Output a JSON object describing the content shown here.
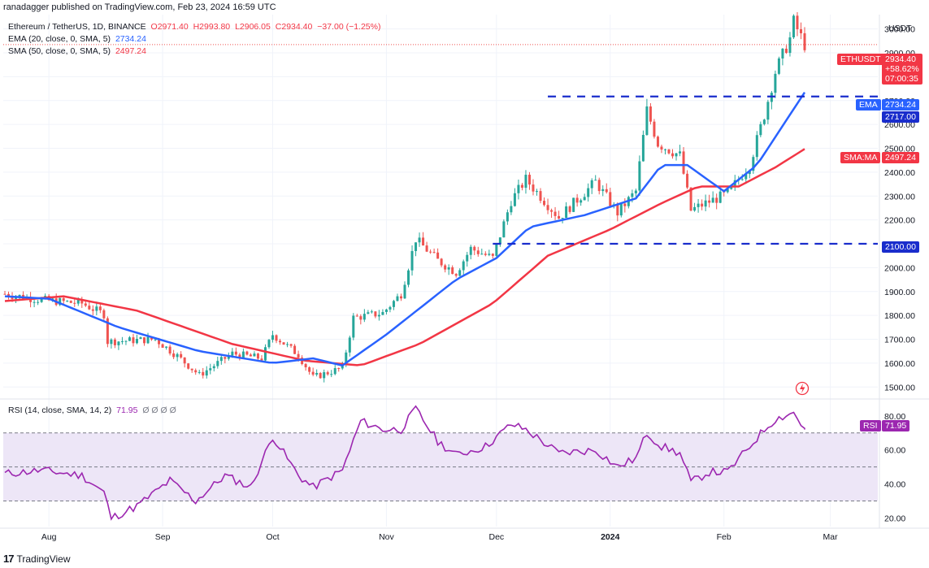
{
  "header": {
    "publish_line": "ranadagger published on TradingView.com, Feb 23, 2024 16:59 UTC",
    "symbol_line": "Ethereum / TetherUS, 1D, BINANCE",
    "ohlc": {
      "o": "O2971.40",
      "h": "H2993.80",
      "l": "L2906.05",
      "c": "C2934.40",
      "chg": "−37.00 (−1.25%)"
    },
    "ema_label": "EMA (20, close, 0, SMA, 5)",
    "ema_value": "2734.24",
    "sma_label": "SMA (50, close, 0, SMA, 5)",
    "sma_value": "2497.24",
    "rsi_label": "RSI (14, close, SMA, 14, 2)",
    "rsi_value": "71.95",
    "rsi_extra": "Ø Ø Ø Ø"
  },
  "footer": {
    "brand": "TradingView",
    "mark": "17"
  },
  "colors": {
    "up": "#26a69a",
    "down": "#ef5350",
    "ema": "#2962ff",
    "sma": "#f23645",
    "rsi": "#9c27b0",
    "level": "#1a2dcc",
    "rsi_fill": "#ede6f7",
    "grid": "#f0f3fa"
  },
  "chart_data": [
    {
      "type": "candlestick",
      "title": "Ethereum / TetherUS, 1D, BINANCE",
      "currency": "USDT",
      "x_ticks": [
        "Aug",
        "Sep",
        "Oct",
        "Nov",
        "Dec",
        "2024",
        "Feb",
        "Mar"
      ],
      "y_ticks": [
        1500,
        1600,
        1700,
        1800,
        1900,
        2000,
        2100,
        2200,
        2300,
        2400,
        2500,
        2600,
        2700,
        2800,
        2900,
        3000
      ],
      "ylim": [
        1460,
        3060
      ],
      "date_range": [
        "2023-07-20",
        "2024-02-23"
      ],
      "close_path": [
        [
          "2023-07-20",
          1890
        ],
        [
          "2023-07-30",
          1865
        ],
        [
          "2023-08-10",
          1850
        ],
        [
          "2023-08-16",
          1805
        ],
        [
          "2023-08-17",
          1690
        ],
        [
          "2023-08-30",
          1700
        ],
        [
          "2023-09-05",
          1630
        ],
        [
          "2023-09-11",
          1550
        ],
        [
          "2023-09-20",
          1640
        ],
        [
          "2023-09-28",
          1620
        ],
        [
          "2023-10-01",
          1720
        ],
        [
          "2023-10-08",
          1635
        ],
        [
          "2023-10-12",
          1540
        ],
        [
          "2023-10-20",
          1580
        ],
        [
          "2023-10-23",
          1790
        ],
        [
          "2023-10-31",
          1810
        ],
        [
          "2023-11-05",
          1890
        ],
        [
          "2023-11-09",
          2120
        ],
        [
          "2023-11-15",
          2030
        ],
        [
          "2023-11-20",
          1980
        ],
        [
          "2023-11-24",
          2080
        ],
        [
          "2023-11-30",
          2040
        ],
        [
          "2023-12-05",
          2280
        ],
        [
          "2023-12-09",
          2370
        ],
        [
          "2023-12-18",
          2210
        ],
        [
          "2023-12-28",
          2360
        ],
        [
          "2024-01-03",
          2230
        ],
        [
          "2024-01-08",
          2320
        ],
        [
          "2024-01-11",
          2660
        ],
        [
          "2024-01-14",
          2520
        ],
        [
          "2024-01-20",
          2470
        ],
        [
          "2024-01-23",
          2240
        ],
        [
          "2024-01-27",
          2270
        ],
        [
          "2024-02-02",
          2310
        ],
        [
          "2024-02-08",
          2430
        ],
        [
          "2024-02-12",
          2640
        ],
        [
          "2024-02-15",
          2820
        ],
        [
          "2024-02-19",
          2960
        ],
        [
          "2024-02-20",
          3030
        ],
        [
          "2024-02-23",
          2934.4
        ]
      ],
      "ema20_path": [
        [
          "2023-07-20",
          1880
        ],
        [
          "2023-08-01",
          1870
        ],
        [
          "2023-08-20",
          1750
        ],
        [
          "2023-09-11",
          1650
        ],
        [
          "2023-10-01",
          1600
        ],
        [
          "2023-10-12",
          1620
        ],
        [
          "2023-10-20",
          1590
        ],
        [
          "2023-11-01",
          1720
        ],
        [
          "2023-11-20",
          1950
        ],
        [
          "2023-12-01",
          2040
        ],
        [
          "2023-12-10",
          2170
        ],
        [
          "2023-12-25",
          2220
        ],
        [
          "2024-01-08",
          2290
        ],
        [
          "2024-01-15",
          2430
        ],
        [
          "2024-01-22",
          2430
        ],
        [
          "2024-02-01",
          2320
        ],
        [
          "2024-02-10",
          2430
        ],
        [
          "2024-02-23",
          2734.24
        ]
      ],
      "sma50_path": [
        [
          "2023-07-20",
          1860
        ],
        [
          "2023-08-05",
          1880
        ],
        [
          "2023-08-25",
          1820
        ],
        [
          "2023-09-20",
          1680
        ],
        [
          "2023-10-10",
          1610
        ],
        [
          "2023-10-25",
          1590
        ],
        [
          "2023-11-10",
          1680
        ],
        [
          "2023-11-30",
          1850
        ],
        [
          "2023-12-15",
          2050
        ],
        [
          "2024-01-01",
          2160
        ],
        [
          "2024-01-15",
          2270
        ],
        [
          "2024-01-25",
          2340
        ],
        [
          "2024-02-05",
          2340
        ],
        [
          "2024-02-15",
          2420
        ],
        [
          "2024-02-23",
          2497.24
        ]
      ],
      "horizontal_levels": [
        {
          "value": 2717.0,
          "label": "2717.00",
          "start": "2023-12-15"
        },
        {
          "value": 2100.0,
          "label": "2100.00",
          "start": "2023-11-30"
        }
      ],
      "price_tags": {
        "symbol": "ETHUSDT",
        "last": "2934.40",
        "change_pct": "+58.62%",
        "countdown": "07:00:35",
        "ema": "EMA",
        "ema_value": "2734.24",
        "sma": "SMA:MA",
        "sma_value": "2497.24",
        "level_high": "2717.00",
        "level_low": "2100.00"
      }
    },
    {
      "type": "line",
      "title": "RSI (14, close, SMA, 14, 2)",
      "y_ticks": [
        20.0,
        40.0,
        60.0,
        80.0
      ],
      "ylim": [
        15,
        88
      ],
      "band": [
        30,
        70
      ],
      "midline": 50,
      "last_value": "71.95",
      "series": [
        [
          "2023-07-20",
          46
        ],
        [
          "2023-07-30",
          48
        ],
        [
          "2023-08-10",
          45
        ],
        [
          "2023-08-16",
          35
        ],
        [
          "2023-08-18",
          20
        ],
        [
          "2023-08-25",
          27
        ],
        [
          "2023-09-03",
          42
        ],
        [
          "2023-09-10",
          30
        ],
        [
          "2023-09-18",
          45
        ],
        [
          "2023-09-25",
          38
        ],
        [
          "2023-10-01",
          68
        ],
        [
          "2023-10-08",
          45
        ],
        [
          "2023-10-12",
          38
        ],
        [
          "2023-10-20",
          48
        ],
        [
          "2023-10-25",
          77
        ],
        [
          "2023-10-31",
          72
        ],
        [
          "2023-11-05",
          72
        ],
        [
          "2023-11-09",
          84
        ],
        [
          "2023-11-15",
          65
        ],
        [
          "2023-11-20",
          57
        ],
        [
          "2023-11-28",
          62
        ],
        [
          "2023-12-05",
          75
        ],
        [
          "2023-12-09",
          72
        ],
        [
          "2023-12-18",
          58
        ],
        [
          "2023-12-28",
          60
        ],
        [
          "2024-01-03",
          50
        ],
        [
          "2024-01-08",
          55
        ],
        [
          "2024-01-11",
          70
        ],
        [
          "2024-01-15",
          62
        ],
        [
          "2024-01-20",
          58
        ],
        [
          "2024-01-23",
          41
        ],
        [
          "2024-01-28",
          47
        ],
        [
          "2024-02-02",
          47
        ],
        [
          "2024-02-08",
          62
        ],
        [
          "2024-02-12",
          72
        ],
        [
          "2024-02-15",
          78
        ],
        [
          "2024-02-20",
          82
        ],
        [
          "2024-02-23",
          71.95
        ]
      ]
    }
  ]
}
